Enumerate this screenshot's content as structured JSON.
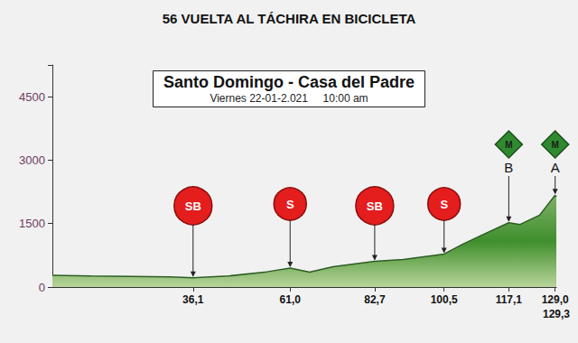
{
  "chart_data": {
    "type": "area",
    "title": "56 VUELTA AL TÁCHIRA EN BICICLETA",
    "subtitle": "Santo Domingo - Casa del Padre",
    "annotations": [
      "Viernes 22-01-2.021     10:00 am"
    ],
    "x": [
      0,
      10,
      20,
      30,
      36.1,
      45,
      55,
      61.0,
      66,
      72,
      82.7,
      90,
      100.5,
      105,
      110,
      117.1,
      120,
      125,
      129.0,
      129.3
    ],
    "values": [
      280,
      260,
      250,
      240,
      220,
      260,
      360,
      450,
      350,
      480,
      610,
      650,
      780,
      1000,
      1220,
      1520,
      1480,
      1700,
      2170,
      2130
    ],
    "color": "#3f8f2c",
    "xlim": [
      0,
      129.3
    ],
    "xticks": [
      {
        "value": 36.1,
        "label": "36,1"
      },
      {
        "value": 61.0,
        "label": "61,0"
      },
      {
        "value": 82.7,
        "label": "82,7"
      },
      {
        "value": 100.5,
        "label": "100,5"
      },
      {
        "value": 117.1,
        "label": "117,1"
      },
      {
        "value": 129.0,
        "label": "129,0"
      },
      {
        "value": 129.3,
        "label": "129,3"
      }
    ],
    "ylim": [
      0,
      5250
    ],
    "yticks": [
      0,
      1500,
      3000,
      4500
    ],
    "grid": false,
    "climbs": [
      {
        "km": 36.1,
        "category": "SB"
      },
      {
        "km": 61.0,
        "category": "S"
      },
      {
        "km": 82.7,
        "category": "SB"
      },
      {
        "km": 100.5,
        "category": "S"
      },
      {
        "km": 117.1,
        "category": "M",
        "name": "B"
      },
      {
        "km": 129.0,
        "category": "M",
        "name": "A"
      }
    ]
  }
}
